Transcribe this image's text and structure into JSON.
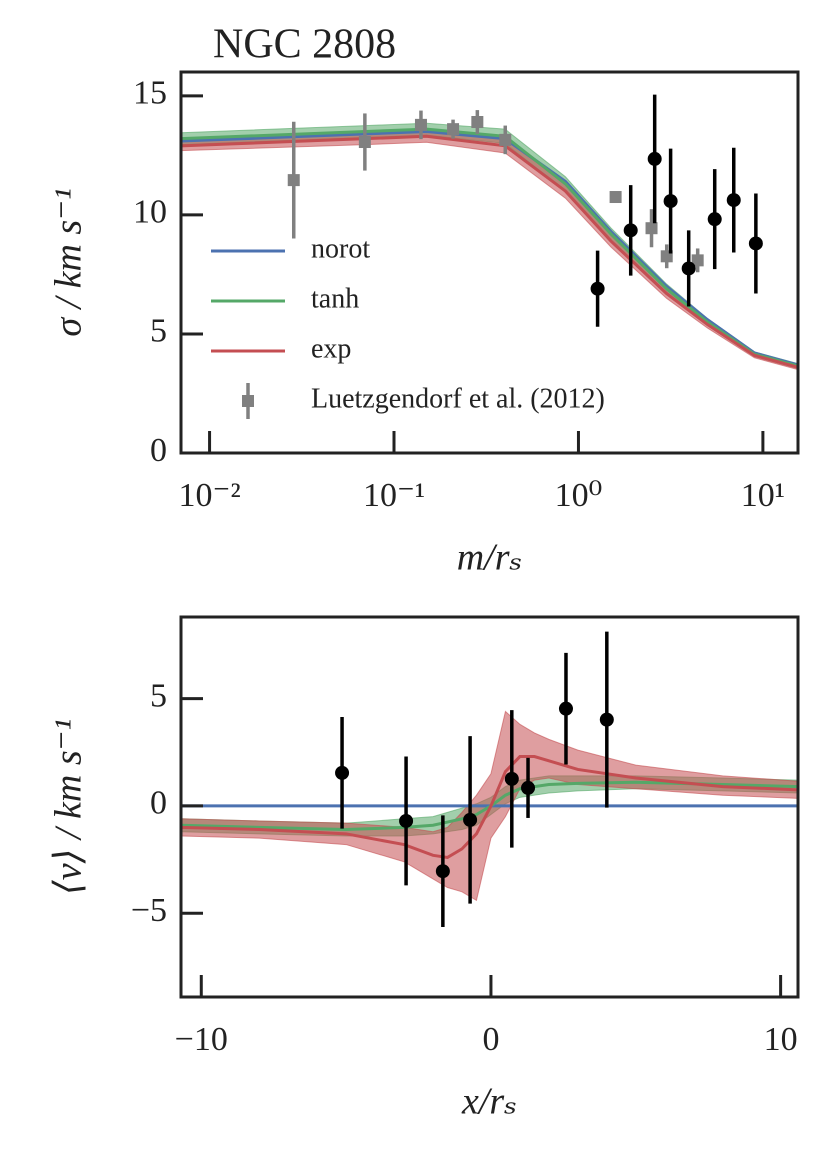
{
  "chart_data": [
    {
      "type": "line",
      "title": "NGC 2808",
      "xlabel": "m/rₛ",
      "ylabel": "σ / km s⁻¹",
      "xscale": "log",
      "xlim": [
        0.007,
        15.5
      ],
      "ylim": [
        0,
        16
      ],
      "xticks": [
        {
          "value": 0.01,
          "label": "10⁻²"
        },
        {
          "value": 0.1,
          "label": "10⁻¹"
        },
        {
          "value": 1,
          "label": "10⁰"
        },
        {
          "value": 10,
          "label": "10¹"
        }
      ],
      "yticks": [
        0,
        5,
        10,
        15
      ],
      "legend": "lower left",
      "x": [
        0.007,
        0.07,
        0.15,
        0.4,
        0.85,
        1.5,
        3,
        5,
        9,
        15.5
      ],
      "series": [
        {
          "name": "norot",
          "color": "#4c72b0",
          "values": [
            13.1,
            13.4,
            13.5,
            13.2,
            11.4,
            9.3,
            7.0,
            5.6,
            4.2,
            3.7
          ]
        },
        {
          "name": "tanh",
          "color": "#55a868",
          "values": [
            13.2,
            13.5,
            13.6,
            13.3,
            11.3,
            9.2,
            6.9,
            5.5,
            4.15,
            3.65
          ],
          "lower": [
            12.95,
            13.25,
            13.35,
            13.0,
            11.0,
            8.95,
            6.7,
            5.35,
            4.05,
            3.55
          ],
          "upper": [
            13.45,
            13.75,
            13.85,
            13.6,
            11.6,
            9.45,
            7.1,
            5.65,
            4.25,
            3.75
          ]
        },
        {
          "name": "exp",
          "color": "#c44e52",
          "values": [
            12.9,
            13.2,
            13.3,
            12.9,
            11.0,
            8.9,
            6.7,
            5.4,
            4.1,
            3.6
          ],
          "lower": [
            12.7,
            12.95,
            13.05,
            12.6,
            10.7,
            8.65,
            6.5,
            5.25,
            4.0,
            3.5
          ],
          "upper": [
            13.15,
            13.45,
            13.55,
            13.2,
            11.3,
            9.15,
            6.9,
            5.55,
            4.2,
            3.7
          ]
        }
      ],
      "errorbars": [
        {
          "name": "Luetzgendorf et al. (2012)",
          "color": "#808080",
          "marker": "square",
          "x": [
            0.0286,
            0.0695,
            0.14,
            0.209,
            0.283,
            0.401,
            1.59,
            2.49,
            3.01,
            4.43
          ],
          "values": [
            11.46,
            13.06,
            13.78,
            13.6,
            13.9,
            13.15,
            10.75,
            9.44,
            8.26,
            8.09
          ],
          "errors": [
            2.45,
            1.2,
            0.6,
            0.4,
            0.5,
            0.6,
            0.2,
            0.8,
            0.5,
            0.5
          ]
        },
        {
          "color": "#000000",
          "marker": "circle",
          "x": [
            1.27,
            1.92,
            2.59,
            3.16,
            3.96,
            5.48,
            6.95,
            9.16
          ],
          "values": [
            6.9,
            9.35,
            12.35,
            10.58,
            7.75,
            9.82,
            10.62,
            8.8
          ],
          "errors": [
            1.6,
            1.9,
            2.7,
            2.2,
            1.6,
            2.1,
            2.2,
            2.1
          ]
        }
      ]
    },
    {
      "type": "line",
      "xlabel": "x/rₛ",
      "ylabel": "⟨v⟩ / km s⁻¹",
      "xlim": [
        -10.7,
        10.6
      ],
      "ylim": [
        -8.9,
        8.8
      ],
      "xticks": [
        {
          "value": -10,
          "label": "−10"
        },
        0,
        10
      ],
      "yticks": [
        {
          "value": -5,
          "label": "−5"
        },
        0,
        5
      ],
      "x": [
        -10.7,
        -8,
        -5,
        -3,
        -2,
        -1.5,
        -1,
        -0.5,
        0,
        0.5,
        1,
        1.5,
        2,
        3,
        5,
        8,
        10.6
      ],
      "series": [
        {
          "name": "norot",
          "color": "#4c72b0",
          "values": [
            0,
            0,
            0,
            0,
            0,
            0,
            0,
            0,
            0,
            0,
            0,
            0,
            0,
            0,
            0,
            0,
            0
          ]
        },
        {
          "name": "tanh",
          "color": "#55a868",
          "values": [
            -0.9,
            -1.0,
            -1.1,
            -1.0,
            -0.9,
            -0.75,
            -0.6,
            -0.4,
            0,
            0.5,
            0.8,
            0.9,
            1.0,
            1.05,
            1.1,
            1.0,
            0.9
          ],
          "lower": [
            -1.2,
            -1.3,
            -1.4,
            -1.4,
            -1.3,
            -1.2,
            -1.1,
            -0.9,
            -0.4,
            0.1,
            0.4,
            0.5,
            0.6,
            0.7,
            0.8,
            0.7,
            0.6
          ],
          "upper": [
            -0.6,
            -0.7,
            -0.8,
            -0.6,
            -0.5,
            -0.3,
            -0.1,
            0.1,
            0.4,
            0.9,
            1.2,
            1.3,
            1.4,
            1.4,
            1.4,
            1.3,
            1.2
          ]
        },
        {
          "name": "exp",
          "color": "#c44e52",
          "values": [
            -1.0,
            -1.1,
            -1.3,
            -1.8,
            -2.3,
            -2.4,
            -2.0,
            -1.3,
            0,
            1.6,
            2.3,
            2.3,
            2.1,
            1.7,
            1.3,
            0.9,
            0.75
          ],
          "lower": [
            -1.4,
            -1.5,
            -1.8,
            -2.6,
            -3.4,
            -3.8,
            -4.0,
            -4.4,
            -1.5,
            -0.5,
            0.8,
            1.2,
            1.3,
            1.0,
            0.8,
            0.5,
            0.35
          ],
          "upper": [
            -0.6,
            -0.7,
            -0.8,
            -1.0,
            -1.2,
            -1.0,
            -0.3,
            0.5,
            1.5,
            4.4,
            3.8,
            3.4,
            3.1,
            2.6,
            1.9,
            1.4,
            1.15
          ]
        }
      ],
      "errorbars": [
        {
          "color": "#000000",
          "marker": "circle",
          "x": [
            -5.14,
            -2.93,
            -1.66,
            -0.72,
            0.72,
            1.28,
            2.59,
            4.0
          ],
          "values": [
            1.54,
            -0.7,
            -3.04,
            -0.65,
            1.26,
            0.84,
            4.53,
            4.02
          ],
          "errors": [
            2.6,
            3.0,
            2.6,
            3.9,
            3.2,
            1.4,
            2.6,
            4.1
          ]
        }
      ]
    }
  ]
}
